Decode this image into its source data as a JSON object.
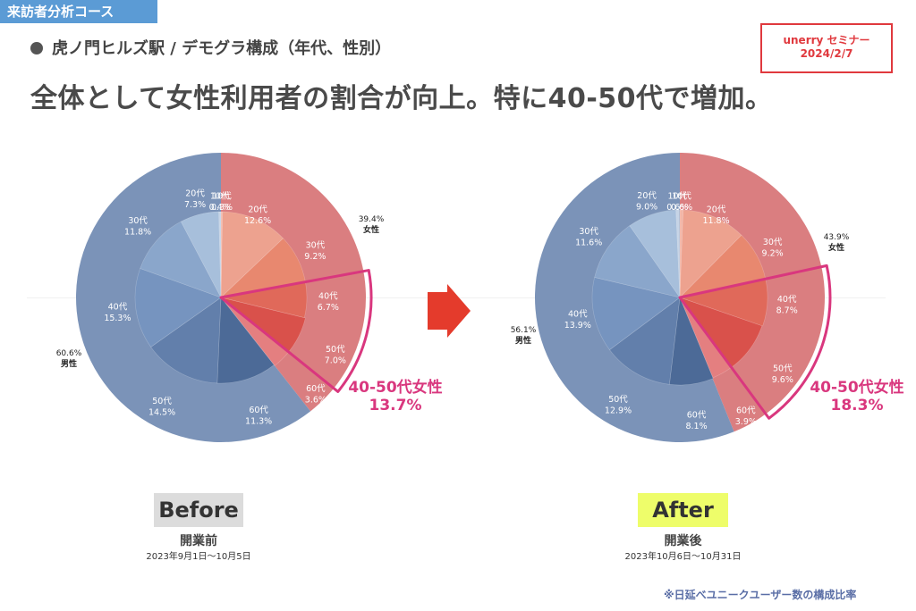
{
  "header": {
    "course_tag": "来訪者分析コース",
    "subtitle": "虎ノ門ヒルズ駅 / デモグラ構成（年代、性別）",
    "headline": "全体として女性利用者の割合が向上。特に40-50代で増加。",
    "seminar_line1": "unerry セミナー",
    "seminar_line2": "2024/2/7"
  },
  "colors": {
    "male_outer": "#7b93b8",
    "female_outer": "#da7e80",
    "highlight": "#d9377e",
    "arrow": "#e43b2c",
    "male_inner": [
      "#c6d4e6",
      "#a7bfdb",
      "#8aa6cb",
      "#7694bf",
      "#627fab",
      "#4c6a97"
    ],
    "female_inner": [
      "#f2b6a7",
      "#eda28f",
      "#e8886f",
      "#e0695a",
      "#d9514b",
      "#e47f80"
    ]
  },
  "arrow_icon": "right-arrow-icon",
  "chart_data": [
    {
      "type": "pie",
      "title": "Before",
      "period": "開業前",
      "date_range": "2023年9月1日〜10月5日",
      "outer": [
        {
          "name": "女性",
          "value": 39.4,
          "label": "39.4%"
        },
        {
          "name": "男性",
          "value": 60.6,
          "label": "60.6%"
        }
      ],
      "inner_female": [
        {
          "age": "10代",
          "value": 0.3,
          "label": "0.3%"
        },
        {
          "age": "20代",
          "value": 12.6,
          "label": "12.6%"
        },
        {
          "age": "30代",
          "value": 9.2,
          "label": "9.2%"
        },
        {
          "age": "40代",
          "value": 6.7,
          "label": "6.7%"
        },
        {
          "age": "50代",
          "value": 7.0,
          "label": "7.0%"
        },
        {
          "age": "60代",
          "value": 3.6,
          "label": "3.6%"
        }
      ],
      "inner_male": [
        {
          "age": "60代",
          "value": 11.3,
          "label": "11.3%"
        },
        {
          "age": "50代",
          "value": 14.5,
          "label": "14.5%"
        },
        {
          "age": "40代",
          "value": 15.3,
          "label": "15.3%"
        },
        {
          "age": "30代",
          "value": 11.8,
          "label": "11.8%"
        },
        {
          "age": "20代",
          "value": 7.3,
          "label": "7.3%"
        },
        {
          "age": "10代",
          "value": 0.4,
          "label": "0.4%"
        }
      ],
      "highlight": {
        "text": "40-50代女性",
        "value": 13.7,
        "label": "13.7%"
      }
    },
    {
      "type": "pie",
      "title": "After",
      "period": "開業後",
      "date_range": "2023年10月6日〜10月31日",
      "outer": [
        {
          "name": "女性",
          "value": 43.9,
          "label": "43.9%"
        },
        {
          "name": "男性",
          "value": 56.1,
          "label": "56.1%"
        }
      ],
      "inner_female": [
        {
          "age": "10代",
          "value": 0.6,
          "label": "0.6%"
        },
        {
          "age": "20代",
          "value": 11.8,
          "label": "11.8%"
        },
        {
          "age": "30代",
          "value": 9.2,
          "label": "9.2%"
        },
        {
          "age": "40代",
          "value": 8.7,
          "label": "8.7%"
        },
        {
          "age": "50代",
          "value": 9.6,
          "label": "9.6%"
        },
        {
          "age": "60代",
          "value": 3.9,
          "label": "3.9%"
        }
      ],
      "inner_male": [
        {
          "age": "60代",
          "value": 8.1,
          "label": "8.1%"
        },
        {
          "age": "50代",
          "value": 12.9,
          "label": "12.9%"
        },
        {
          "age": "40代",
          "value": 13.9,
          "label": "13.9%"
        },
        {
          "age": "30代",
          "value": 11.6,
          "label": "11.6%"
        },
        {
          "age": "20代",
          "value": 9.0,
          "label": "9.0%"
        },
        {
          "age": "10代",
          "value": 0.6,
          "label": "0.6%"
        }
      ],
      "highlight": {
        "text": "40-50代女性",
        "value": 18.3,
        "label": "18.3%"
      }
    }
  ],
  "footnote": "※日延べユニークユーザー数の構成比率"
}
